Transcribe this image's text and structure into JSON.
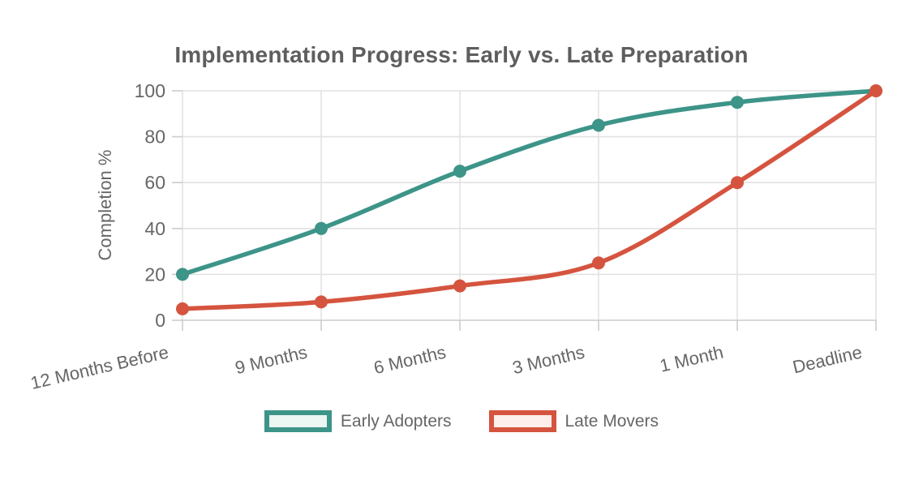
{
  "chart_data": {
    "type": "line",
    "title": "Implementation Progress: Early vs. Late Preparation",
    "xlabel": "",
    "ylabel": "Completion %",
    "categories": [
      "12 Months Before",
      "9 Months",
      "6 Months",
      "3 Months",
      "1 Month",
      "Deadline"
    ],
    "series": [
      {
        "name": "Early Adopters",
        "color": "#3D9488",
        "legend_fill": "#EBF5F2",
        "values": [
          20,
          40,
          65,
          85,
          95,
          100
        ]
      },
      {
        "name": "Late Movers",
        "color": "#D5543F",
        "legend_fill": "#FCEEEA",
        "values": [
          5,
          8,
          15,
          25,
          60,
          100
        ]
      }
    ],
    "ylim": [
      0,
      100
    ],
    "yticks": [
      0,
      20,
      40,
      60,
      80,
      100
    ],
    "grid": true,
    "curve": "smooth",
    "legend_position": "bottom",
    "x_label_rotation_deg": -13,
    "style": {
      "grid_color": "#E2E2E2",
      "axis_color": "#CCCCCC",
      "text_color": "#666666",
      "title_color": "#5E5E60",
      "background": "#FFFFFF"
    }
  }
}
